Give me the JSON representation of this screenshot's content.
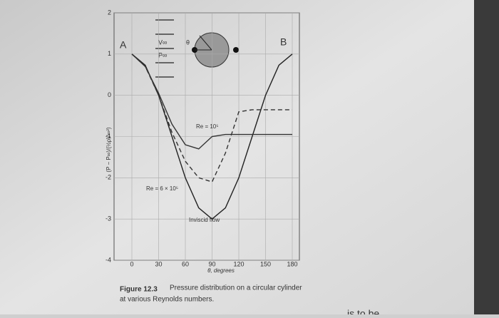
{
  "chart_data": {
    "type": "line",
    "y_label": "(P − P∞)/(½ρV∞²)",
    "x_label": "θ, degrees",
    "x": [
      0,
      15,
      30,
      45,
      60,
      75,
      90,
      105,
      120,
      135,
      150,
      165,
      180
    ],
    "series": [
      {
        "name": "Inviscid flow",
        "color": "#222222",
        "style": "solid",
        "values": [
          1,
          0.73,
          0,
          -1,
          -2,
          -2.73,
          -3,
          -2.73,
          -2,
          -1,
          0,
          0.73,
          1
        ]
      },
      {
        "name": "Re = 10⁵",
        "color": "#333333",
        "style": "solid",
        "values": [
          1,
          0.7,
          0.05,
          -0.7,
          -1.2,
          -1.3,
          -1.0,
          -0.95,
          -0.95,
          -0.95,
          -0.95,
          -0.95,
          -0.95
        ]
      },
      {
        "name": "Re = 6 × 10⁵",
        "color": "#333333",
        "style": "dashed",
        "values": [
          1,
          0.7,
          0,
          -0.9,
          -1.6,
          -2.0,
          -2.1,
          -1.4,
          -0.4,
          -0.35,
          -0.35,
          -0.35,
          -0.35
        ]
      }
    ],
    "xlim": [
      0,
      180
    ],
    "xticks": [
      0,
      30,
      60,
      90,
      120,
      150,
      180
    ],
    "ylim": [
      -4,
      2
    ],
    "yticks": [
      2,
      1,
      0,
      -1,
      -2,
      -3,
      -4
    ],
    "grid": true,
    "annotations": [
      "A",
      "B"
    ],
    "diagram_labels": [
      "V∞",
      "P∞",
      "θ"
    ],
    "caption_title": "Figure 12.3",
    "caption_text": "Pressure distribution on a circular cylinder",
    "caption_line2": "at various Reynolds numbers.",
    "page_fragment": "is to be"
  }
}
